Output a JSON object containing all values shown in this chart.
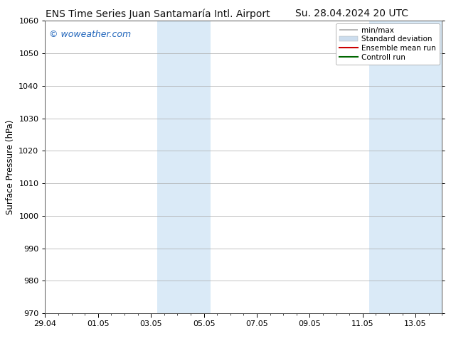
{
  "title_left": "ENS Time Series Juan Santamaría Intl. Airport",
  "title_right": "Su. 28.04.2024 20 UTC",
  "ylabel": "Surface Pressure (hPa)",
  "ylim": [
    970,
    1060
  ],
  "yticks": [
    970,
    980,
    990,
    1000,
    1010,
    1020,
    1030,
    1040,
    1050,
    1060
  ],
  "xlim": [
    0,
    15
  ],
  "xtick_labels": [
    "29.04",
    "01.05",
    "03.05",
    "05.05",
    "07.05",
    "09.05",
    "11.05",
    "13.05"
  ],
  "xtick_positions": [
    0,
    2,
    4,
    6,
    8,
    10,
    12,
    14
  ],
  "shaded_bands": [
    {
      "x_start": 4.25,
      "x_end": 6.25,
      "color": "#daeaf7"
    },
    {
      "x_start": 12.25,
      "x_end": 15.0,
      "color": "#daeaf7"
    }
  ],
  "watermark_text": "© woweather.com",
  "watermark_color": "#2266bb",
  "watermark_fontsize": 9,
  "legend_items": [
    {
      "label": "min/max",
      "color": "#aaaaaa",
      "lw": 1.2,
      "type": "hline"
    },
    {
      "label": "Standard deviation",
      "color": "#ccddee",
      "lw": 7,
      "type": "band"
    },
    {
      "label": "Ensemble mean run",
      "color": "#cc0000",
      "lw": 1.5,
      "type": "line"
    },
    {
      "label": "Controll run",
      "color": "#006600",
      "lw": 1.5,
      "type": "line"
    }
  ],
  "bg_color": "#ffffff",
  "plot_bg_color": "#ffffff",
  "grid_color": "#aaaaaa",
  "grid_lw": 0.5,
  "title_fontsize": 10,
  "axis_label_fontsize": 8.5,
  "tick_fontsize": 8,
  "legend_fontsize": 7.5
}
